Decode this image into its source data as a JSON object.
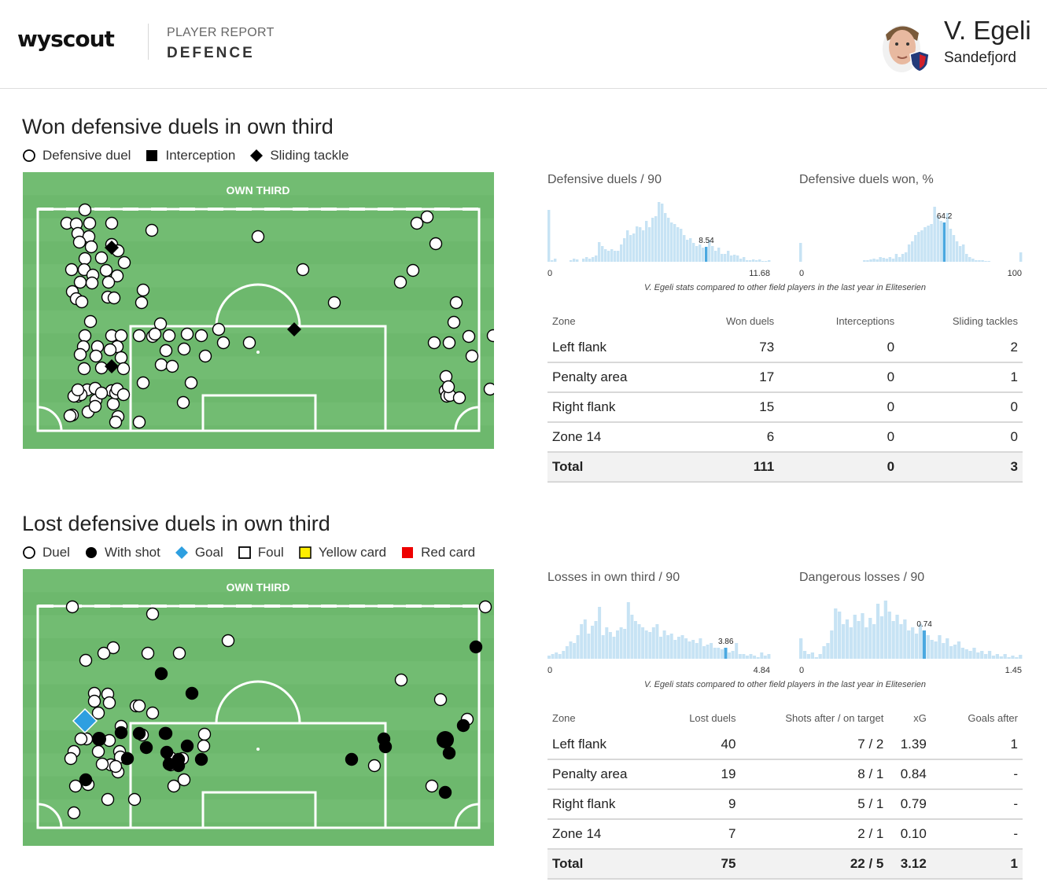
{
  "header": {
    "logo": "wyscout",
    "kicker": "PLAYER REPORT",
    "title": "DEFENCE",
    "player_name": "V. Egeli",
    "team": "Sandefjord"
  },
  "won_section": {
    "title": "Won defensive duels in own third",
    "legend": [
      {
        "label": "Defensive duel",
        "marker": "circle-open"
      },
      {
        "label": "Interception",
        "marker": "square-filled"
      },
      {
        "label": "Sliding tackle",
        "marker": "diamond-filled"
      }
    ],
    "pitch_label": "OWN THIRD",
    "histograms": [
      {
        "title": "Defensive duels / 90",
        "min": "0",
        "max": "11.68",
        "value": "8.54"
      },
      {
        "title": "Defensive duels won, %",
        "min": "0",
        "max": "100",
        "value": "64.2"
      }
    ],
    "caption": "V. Egeli stats compared to other field players in the last year in Eliteserien",
    "table": {
      "headers": [
        "Zone",
        "Won duels",
        "Interceptions",
        "Sliding tackles"
      ],
      "rows": [
        [
          "Left flank",
          "73",
          "0",
          "2"
        ],
        [
          "Penalty area",
          "17",
          "0",
          "1"
        ],
        [
          "Right flank",
          "15",
          "0",
          "0"
        ],
        [
          "Zone 14",
          "6",
          "0",
          "0"
        ]
      ],
      "total": [
        "Total",
        "111",
        "0",
        "3"
      ]
    }
  },
  "lost_section": {
    "title": "Lost defensive duels in own third",
    "legend": [
      {
        "label": "Duel",
        "marker": "circle-open"
      },
      {
        "label": "With shot",
        "marker": "circle-filled"
      },
      {
        "label": "Goal",
        "marker": "diamond-blue"
      },
      {
        "label": "Foul",
        "marker": "square-open"
      },
      {
        "label": "Yellow card",
        "marker": "square-yellow"
      },
      {
        "label": "Red card",
        "marker": "square-red"
      }
    ],
    "pitch_label": "OWN THIRD",
    "histograms": [
      {
        "title": "Losses in own third / 90",
        "min": "0",
        "max": "4.84",
        "value": "3.86"
      },
      {
        "title": "Dangerous losses / 90",
        "min": "0",
        "max": "1.45",
        "value": "0.74"
      }
    ],
    "caption": "V. Egeli stats compared to other field players in the last year in Eliteserien",
    "table": {
      "headers": [
        "Zone",
        "Lost duels",
        "Shots after / on target",
        "xG",
        "Goals after"
      ],
      "rows": [
        [
          "Left flank",
          "40",
          "7 / 2",
          "1.39",
          "1"
        ],
        [
          "Penalty area",
          "19",
          "8 / 1",
          "0.84",
          "-"
        ],
        [
          "Right flank",
          "9",
          "5 / 1",
          "0.79",
          "-"
        ],
        [
          "Zone 14",
          "7",
          "2 / 1",
          "0.10",
          "-"
        ]
      ],
      "total": [
        "Total",
        "75",
        "22 / 5",
        "3.12",
        "1"
      ]
    }
  },
  "colors": {
    "pitch_green": "#6db86d",
    "pitch_stripe": "#76bf76",
    "histogram_bar": "#c7e3f4",
    "histogram_highlight": "#4aa8e0",
    "goal_marker": "#2e9fe0",
    "yellow_card": "#ffee00",
    "red_card": "#ee0000"
  }
}
